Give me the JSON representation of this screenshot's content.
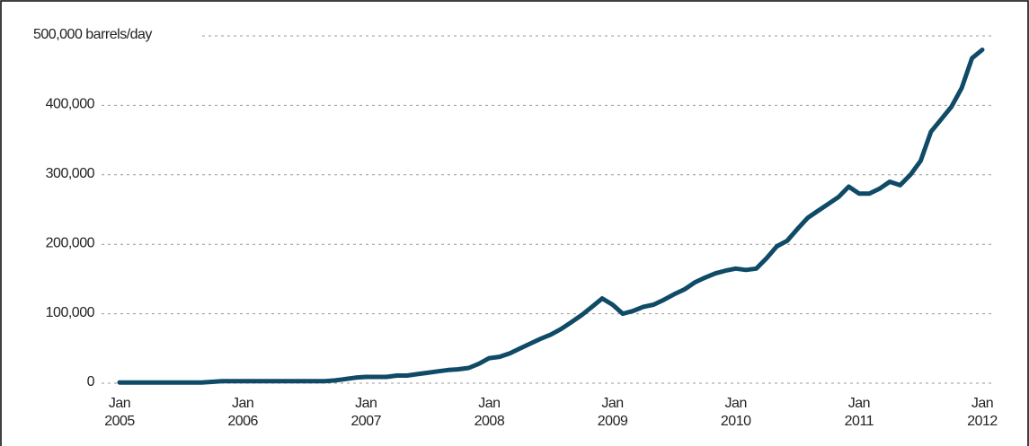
{
  "chart_data": {
    "type": "line",
    "categories": [
      "Jan 2005",
      null,
      null,
      null,
      null,
      null,
      null,
      null,
      null,
      null,
      null,
      null,
      "Jan 2006",
      null,
      null,
      null,
      null,
      null,
      null,
      null,
      null,
      null,
      null,
      null,
      "Jan 2007",
      null,
      null,
      null,
      null,
      null,
      null,
      null,
      null,
      null,
      null,
      null,
      "Jan 2008",
      null,
      null,
      null,
      null,
      null,
      null,
      null,
      null,
      null,
      null,
      null,
      "Jan 2009",
      null,
      null,
      null,
      null,
      null,
      null,
      null,
      null,
      null,
      null,
      null,
      "Jan 2010",
      null,
      null,
      null,
      null,
      null,
      null,
      null,
      null,
      null,
      null,
      null,
      "Jan 2011",
      null,
      null,
      null,
      null,
      null,
      null,
      null,
      null,
      null,
      null,
      null,
      "Jan 2012"
    ],
    "series": [
      {
        "color": "#0f4a66",
        "values": [
          1000,
          1000,
          1000,
          1000,
          1000,
          1000,
          1000,
          1000,
          1000,
          2000,
          3000,
          3000,
          3000,
          3000,
          3000,
          3000,
          3000,
          3000,
          3000,
          3000,
          3000,
          4000,
          6000,
          8000,
          9000,
          9000,
          9000,
          11000,
          11000,
          13000,
          15000,
          17000,
          19000,
          20000,
          22000,
          28000,
          36000,
          38000,
          43000,
          50000,
          57000,
          64000,
          70000,
          78000,
          88000,
          98000,
          110000,
          122000,
          113000,
          100000,
          104000,
          110000,
          113000,
          120000,
          128000,
          135000,
          145000,
          152000,
          158000,
          162000,
          165000,
          163000,
          165000,
          180000,
          197000,
          205000,
          222000,
          238000,
          248000,
          258000,
          268000,
          283000,
          273000,
          273000,
          280000,
          290000,
          285000,
          300000,
          320000,
          362000,
          380000,
          398000,
          425000,
          468000,
          480000
        ]
      }
    ],
    "ylim": [
      0,
      500000
    ],
    "yticks": [
      0,
      {
        "value": 100000,
        "label": "100,000"
      },
      {
        "value": 200000,
        "label": "200,000"
      },
      {
        "value": 300000,
        "label": "300,000"
      },
      {
        "value": 400000,
        "label": "400,000"
      },
      {
        "value": 500000,
        "label": "500,000 barrels/day"
      }
    ],
    "grid": true
  }
}
